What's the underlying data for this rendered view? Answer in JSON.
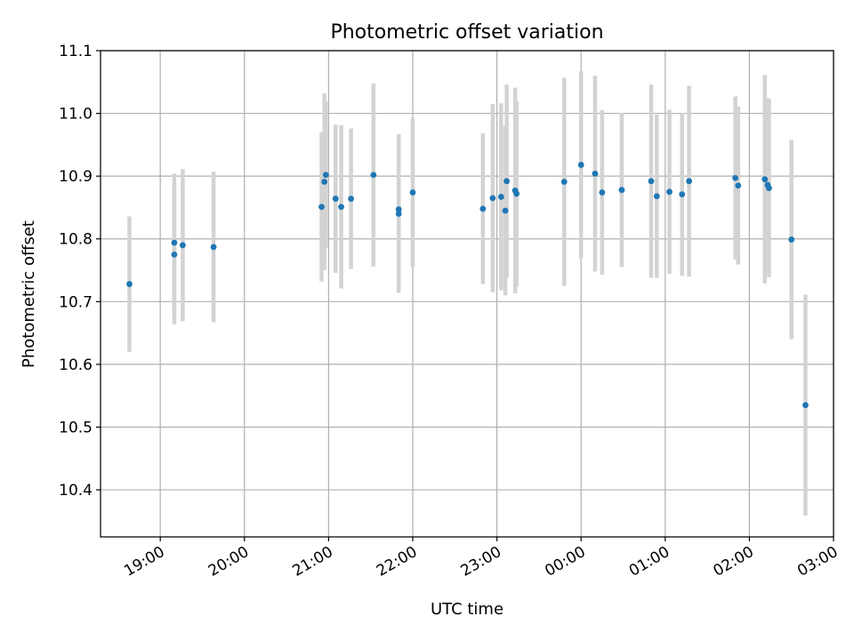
{
  "chart_data": {
    "type": "scatter",
    "title": "Photometric offset variation",
    "xlabel": "UTC time",
    "ylabel": "Photometric offset",
    "x_unit": "hours",
    "xlim": [
      18.29,
      27.0
    ],
    "ylim": [
      10.325,
      11.1
    ],
    "x_ticks": [
      {
        "value": 19,
        "label": "19:00"
      },
      {
        "value": 20,
        "label": "20:00"
      },
      {
        "value": 21,
        "label": "21:00"
      },
      {
        "value": 22,
        "label": "22:00"
      },
      {
        "value": 23,
        "label": "23:00"
      },
      {
        "value": 24,
        "label": "00:00"
      },
      {
        "value": 25,
        "label": "01:00"
      },
      {
        "value": 26,
        "label": "02:00"
      },
      {
        "value": 27,
        "label": "03:00"
      }
    ],
    "y_ticks": [
      {
        "value": 10.4,
        "label": "10.4"
      },
      {
        "value": 10.5,
        "label": "10.5"
      },
      {
        "value": 10.6,
        "label": "10.6"
      },
      {
        "value": 10.7,
        "label": "10.7"
      },
      {
        "value": 10.8,
        "label": "10.8"
      },
      {
        "value": 10.9,
        "label": "10.9"
      },
      {
        "value": 11.0,
        "label": "11.0"
      },
      {
        "value": 11.1,
        "label": "11.1"
      }
    ],
    "grid": true,
    "point_color": "#1f77b4",
    "errorbar_color": "#d3d3d3",
    "points": [
      {
        "x": "18:38",
        "y": 10.728,
        "err": 0.108
      },
      {
        "x": "19:10",
        "y": 10.794,
        "err": 0.11
      },
      {
        "x": "19:10",
        "y": 10.775,
        "err": 0.111
      },
      {
        "x": "19:16",
        "y": 10.79,
        "err": 0.121
      },
      {
        "x": "19:38",
        "y": 10.787,
        "err": 0.12
      },
      {
        "x": "20:55",
        "y": 10.851,
        "err": 0.119
      },
      {
        "x": "20:57",
        "y": 10.891,
        "err": 0.141
      },
      {
        "x": "20:58",
        "y": 10.902,
        "err": 0.117
      },
      {
        "x": "21:05",
        "y": 10.864,
        "err": 0.118
      },
      {
        "x": "21:09",
        "y": 10.851,
        "err": 0.13
      },
      {
        "x": "21:16",
        "y": 10.864,
        "err": 0.112
      },
      {
        "x": "21:32",
        "y": 10.902,
        "err": 0.146
      },
      {
        "x": "21:50",
        "y": 10.847,
        "err": 0.12
      },
      {
        "x": "21:50",
        "y": 10.84,
        "err": 0.126
      },
      {
        "x": "22:00",
        "y": 10.874,
        "err": 0.119
      },
      {
        "x": "22:50",
        "y": 10.848,
        "err": 0.12
      },
      {
        "x": "22:57",
        "y": 10.865,
        "err": 0.15
      },
      {
        "x": "23:03",
        "y": 10.867,
        "err": 0.149
      },
      {
        "x": "23:06",
        "y": 10.845,
        "err": 0.135
      },
      {
        "x": "23:07",
        "y": 10.892,
        "err": 0.154
      },
      {
        "x": "23:13",
        "y": 10.877,
        "err": 0.164
      },
      {
        "x": "23:14",
        "y": 10.872,
        "err": 0.148
      },
      {
        "x": "23:48",
        "y": 10.891,
        "err": 0.166
      },
      {
        "x": "00:00",
        "y": 10.918,
        "err": 0.149
      },
      {
        "x": "00:10",
        "y": 10.904,
        "err": 0.156
      },
      {
        "x": "00:15",
        "y": 10.874,
        "err": 0.131
      },
      {
        "x": "00:29",
        "y": 10.878,
        "err": 0.123
      },
      {
        "x": "00:50",
        "y": 10.892,
        "err": 0.154
      },
      {
        "x": "00:54",
        "y": 10.868,
        "err": 0.13
      },
      {
        "x": "01:03",
        "y": 10.875,
        "err": 0.131
      },
      {
        "x": "01:12",
        "y": 10.871,
        "err": 0.13
      },
      {
        "x": "01:17",
        "y": 10.892,
        "err": 0.152
      },
      {
        "x": "01:50",
        "y": 10.897,
        "err": 0.13
      },
      {
        "x": "01:52",
        "y": 10.885,
        "err": 0.126
      },
      {
        "x": "02:11",
        "y": 10.895,
        "err": 0.166
      },
      {
        "x": "02:13",
        "y": 10.886,
        "err": 0.138
      },
      {
        "x": "02:14",
        "y": 10.881,
        "err": 0.142
      },
      {
        "x": "02:30",
        "y": 10.799,
        "err": 0.159
      },
      {
        "x": "02:40",
        "y": 10.535,
        "err": 0.176
      }
    ]
  }
}
